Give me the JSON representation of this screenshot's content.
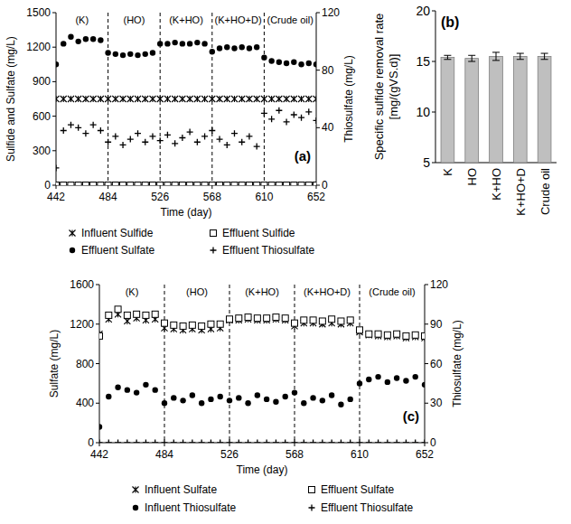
{
  "chart_data": [
    {
      "type": "scatter",
      "panel_label": "(a)",
      "x_label": "Time (day)",
      "y_label": "Sulfide and Sulfate (mg/L)",
      "y2_label": "Thiosulfate (mg/L)",
      "phase_labels": [
        "(K)",
        "(HO)",
        "(K+HO)",
        "(K+HO+D)",
        "(Crude oil)"
      ],
      "phase_boundaries": [
        484,
        526,
        568,
        610
      ],
      "x": [
        442,
        448,
        454,
        460,
        466,
        472,
        478,
        484,
        490,
        496,
        502,
        508,
        514,
        520,
        526,
        532,
        538,
        544,
        550,
        556,
        562,
        568,
        574,
        580,
        586,
        592,
        598,
        604,
        610,
        616,
        622,
        628,
        634,
        640,
        646,
        652
      ],
      "xlim": [
        442,
        652
      ],
      "xticks": [
        442,
        484,
        526,
        568,
        610,
        652
      ],
      "ylim": [
        0,
        1500
      ],
      "yticks": [
        0,
        300,
        600,
        900,
        1200,
        1500
      ],
      "y2lim": [
        0,
        120
      ],
      "y2ticks": [
        0,
        40,
        80,
        120
      ],
      "legend": "bottom",
      "series": [
        {
          "name": "Influent Sulfide",
          "color": "#000000",
          "marker": "x",
          "values": [
            750,
            750,
            750,
            750,
            750,
            750,
            750,
            750,
            750,
            750,
            750,
            750,
            750,
            750,
            750,
            750,
            750,
            750,
            750,
            750,
            750,
            750,
            750,
            750,
            750,
            750,
            750,
            750,
            750,
            750,
            750,
            750,
            750,
            750,
            750,
            750
          ]
        },
        {
          "name": "Effluent Sulfide",
          "color": "#000000",
          "marker": "square",
          "values": [
            0,
            0,
            0,
            0,
            0,
            0,
            0,
            0,
            0,
            0,
            0,
            0,
            0,
            0,
            0,
            0,
            0,
            0,
            0,
            0,
            0,
            0,
            0,
            0,
            0,
            0,
            0,
            0,
            0,
            0,
            0,
            0,
            0,
            0,
            0,
            0
          ]
        },
        {
          "name": "Effluent Sulfate",
          "color": "#000000",
          "marker": "circle",
          "values": [
            1050,
            1230,
            1290,
            1250,
            1270,
            1270,
            1260,
            1150,
            1140,
            1130,
            1140,
            1130,
            1140,
            1150,
            1230,
            1230,
            1240,
            1230,
            1230,
            1240,
            1230,
            1160,
            1190,
            1200,
            1190,
            1200,
            1190,
            1200,
            1110,
            1080,
            1070,
            1060,
            1070,
            1050,
            1060,
            1050
          ]
        },
        {
          "name": "Effluent Thiosulfate",
          "color": "#000000",
          "marker": "plus",
          "axis": "y2",
          "values": [
            12,
            38,
            42,
            40,
            36,
            42,
            38,
            30,
            34,
            28,
            32,
            36,
            30,
            34,
            31,
            35,
            29,
            33,
            37,
            30,
            34,
            38,
            32,
            28,
            36,
            30,
            34,
            27,
            50,
            46,
            52,
            44,
            49,
            47,
            51,
            45
          ]
        }
      ]
    },
    {
      "type": "bar",
      "panel_label": "(b)",
      "y_label": "Specific sulfide removal rate [mg/(gVS.d)]",
      "categories": [
        "K",
        "HO",
        "K+HO",
        "K+HO+D",
        "Crude oil"
      ],
      "values": [
        15.4,
        15.3,
        15.5,
        15.5,
        15.5
      ],
      "errors": [
        0.2,
        0.3,
        0.4,
        0.3,
        0.3
      ],
      "color": "#bfbfbf",
      "ylim": [
        5,
        20
      ],
      "yticks": [
        5,
        10,
        15,
        20
      ]
    },
    {
      "type": "scatter",
      "panel_label": "(c)",
      "x_label": "Time (day)",
      "y_label": "Sulfate (mg/L)",
      "y2_label": "Thiosulfate (mg/L)",
      "phase_labels": [
        "(K)",
        "(HO)",
        "(K+HO)",
        "(K+HO+D)",
        "(Crude oil)"
      ],
      "phase_boundaries": [
        484,
        526,
        568,
        610
      ],
      "x": [
        442,
        448,
        454,
        460,
        466,
        472,
        478,
        484,
        490,
        496,
        502,
        508,
        514,
        520,
        526,
        532,
        538,
        544,
        550,
        556,
        562,
        568,
        574,
        580,
        586,
        592,
        598,
        604,
        610,
        616,
        622,
        628,
        634,
        640,
        646,
        652
      ],
      "xlim": [
        442,
        652
      ],
      "xticks": [
        442,
        484,
        526,
        568,
        610,
        652
      ],
      "ylim": [
        0,
        1600
      ],
      "yticks": [
        0,
        400,
        800,
        1200,
        1600
      ],
      "y2lim": [
        0,
        120
      ],
      "y2ticks": [
        0,
        30,
        60,
        90,
        120
      ],
      "legend": "bottom",
      "series": [
        {
          "name": "Influent Sulfate",
          "color": "#000000",
          "marker": "x",
          "values": [
            1100,
            1250,
            1300,
            1230,
            1260,
            1240,
            1250,
            1160,
            1150,
            1140,
            1150,
            1140,
            1150,
            1160,
            1240,
            1240,
            1250,
            1240,
            1240,
            1250,
            1240,
            1180,
            1210,
            1210,
            1200,
            1210,
            1200,
            1210,
            1120,
            1090,
            1080,
            1070,
            1080,
            1060,
            1070,
            1060
          ]
        },
        {
          "name": "Effluent Sulfate",
          "color": "#000000",
          "marker": "square",
          "values": [
            1080,
            1290,
            1350,
            1290,
            1300,
            1290,
            1300,
            1210,
            1190,
            1180,
            1190,
            1180,
            1200,
            1200,
            1250,
            1260,
            1270,
            1260,
            1260,
            1270,
            1260,
            1210,
            1240,
            1240,
            1230,
            1250,
            1230,
            1240,
            1140,
            1100,
            1100,
            1090,
            1100,
            1080,
            1090,
            1080
          ]
        },
        {
          "name": "Influent Thiosulfate",
          "color": "#000000",
          "marker": "circle",
          "axis": "y2",
          "values": [
            12,
            35,
            42,
            40,
            38,
            44,
            40,
            30,
            34,
            32,
            36,
            30,
            33,
            35,
            32,
            34,
            30,
            36,
            33,
            31,
            35,
            38,
            30,
            34,
            32,
            36,
            29,
            33,
            45,
            48,
            50,
            46,
            49,
            47,
            50,
            44
          ]
        },
        {
          "name": "Effluent Thiosulfate",
          "color": "#000000",
          "marker": "plus",
          "axis": "y2",
          "values": [
            0,
            0,
            0,
            0,
            0,
            0,
            0,
            0,
            0,
            0,
            0,
            0,
            0,
            0,
            0,
            0,
            0,
            0,
            0,
            0,
            0,
            0,
            0,
            0,
            0,
            0,
            0,
            0,
            0,
            0,
            0,
            0,
            0,
            0,
            0,
            0
          ]
        }
      ]
    }
  ]
}
